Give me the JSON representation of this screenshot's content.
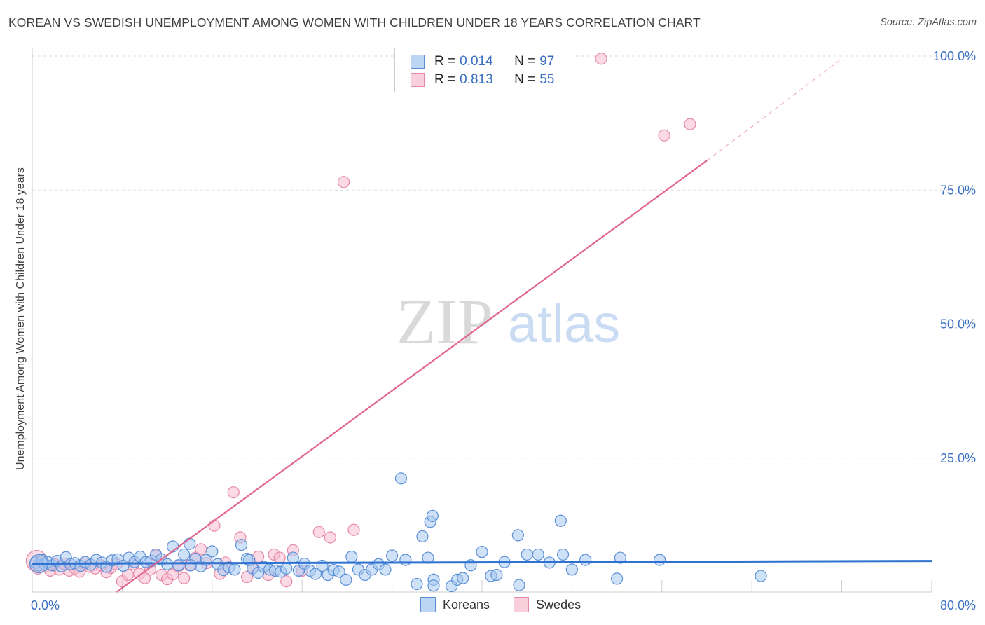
{
  "title": "KOREAN VS SWEDISH UNEMPLOYMENT AMONG WOMEN WITH CHILDREN UNDER 18 YEARS CORRELATION CHART",
  "source": "Source: ZipAtlas.com",
  "watermark": {
    "zip": "ZIP",
    "atlas": "atlas"
  },
  "colors": {
    "korean_fill": "#a8c8f0",
    "korean_stroke": "#5b8fd6",
    "korean_line": "#2f72d0",
    "swede_fill": "#f7bcd0",
    "swede_stroke": "#e58aa8",
    "swede_line": "#e0658f",
    "tick_text": "#3a6fc4",
    "grid": "#dddddd"
  },
  "legend": {
    "korean": {
      "r_label": "R =",
      "r_value": "0.014",
      "n_label": "N =",
      "n_value": "97"
    },
    "swede": {
      "r_label": "R =",
      "r_value": "0.813",
      "n_label": "N =",
      "n_value": "55"
    }
  },
  "bottom_legend": {
    "korean": "Koreans",
    "swede": "Swedes"
  },
  "chart_data": {
    "type": "scatter",
    "title": "KOREAN VS SWEDISH UNEMPLOYMENT AMONG WOMEN WITH CHILDREN UNDER 18 YEARS CORRELATION CHART",
    "xlabel": "",
    "ylabel": "Unemployment Among Women with Children Under 18 years",
    "xlim": [
      0,
      80
    ],
    "ylim": [
      0,
      102
    ],
    "x_tick_labels": [
      "0.0%",
      "80.0%"
    ],
    "y_ticks": [
      25,
      50,
      75,
      100
    ],
    "y_tick_labels": [
      "25.0%",
      "50.0%",
      "75.0%",
      "100.0%"
    ],
    "grid": true,
    "legend_placement": "top-center",
    "series": [
      {
        "name": "Koreans",
        "trend": {
          "x": [
            0,
            80
          ],
          "y": [
            5.3,
            5.8
          ]
        },
        "points": [
          [
            0.3,
            5.5
          ],
          [
            0.6,
            5.0
          ],
          [
            0.9,
            6.0
          ],
          [
            1.1,
            5.2
          ],
          [
            1.4,
            5.6
          ],
          [
            1.8,
            5.0
          ],
          [
            2.2,
            5.8
          ],
          [
            2.6,
            4.8
          ],
          [
            3.0,
            6.5
          ],
          [
            3.4,
            5.2
          ],
          [
            3.8,
            5.4
          ],
          [
            4.3,
            4.9
          ],
          [
            4.7,
            5.6
          ],
          [
            5.2,
            5.1
          ],
          [
            5.7,
            6.0
          ],
          [
            6.2,
            5.5
          ],
          [
            6.6,
            4.7
          ],
          [
            7.1,
            5.9
          ],
          [
            7.6,
            6.1
          ],
          [
            8.1,
            4.9
          ],
          [
            8.6,
            6.4
          ],
          [
            9.1,
            5.6
          ],
          [
            9.6,
            6.6
          ],
          [
            10.1,
            5.6
          ],
          [
            10.6,
            5.8
          ],
          [
            11.0,
            7.0
          ],
          [
            11.5,
            6.1
          ],
          [
            12.0,
            5.2
          ],
          [
            12.5,
            8.5
          ],
          [
            13.0,
            5.0
          ],
          [
            13.5,
            7.0
          ],
          [
            14.0,
            9.0
          ],
          [
            14.5,
            6.2
          ],
          [
            15.0,
            4.8
          ],
          [
            15.5,
            6.0
          ],
          [
            16.0,
            7.6
          ],
          [
            16.5,
            5.2
          ],
          [
            17.0,
            4.1
          ],
          [
            17.5,
            4.6
          ],
          [
            18.0,
            4.2
          ],
          [
            18.6,
            8.8
          ],
          [
            19.1,
            6.2
          ],
          [
            19.6,
            4.4
          ],
          [
            20.1,
            3.6
          ],
          [
            20.6,
            4.7
          ],
          [
            21.1,
            4.2
          ],
          [
            21.6,
            4.0
          ],
          [
            22.1,
            3.8
          ],
          [
            22.6,
            4.4
          ],
          [
            23.2,
            6.4
          ],
          [
            23.7,
            4.0
          ],
          [
            24.2,
            5.3
          ],
          [
            24.7,
            4.0
          ],
          [
            25.2,
            3.4
          ],
          [
            25.8,
            4.9
          ],
          [
            26.3,
            3.2
          ],
          [
            26.8,
            4.1
          ],
          [
            27.3,
            3.8
          ],
          [
            27.9,
            2.3
          ],
          [
            28.4,
            6.6
          ],
          [
            29.0,
            4.2
          ],
          [
            29.6,
            3.2
          ],
          [
            30.2,
            4.2
          ],
          [
            30.8,
            5.2
          ],
          [
            31.4,
            4.2
          ],
          [
            32.0,
            6.8
          ],
          [
            32.8,
            21.2
          ],
          [
            33.2,
            6.0
          ],
          [
            34.2,
            1.5
          ],
          [
            34.7,
            10.4
          ],
          [
            35.2,
            6.4
          ],
          [
            35.7,
            2.3
          ],
          [
            35.7,
            1.2
          ],
          [
            37.3,
            1.1
          ],
          [
            37.8,
            2.3
          ],
          [
            38.3,
            2.6
          ],
          [
            39.0,
            5.0
          ],
          [
            40.0,
            7.5
          ],
          [
            40.8,
            3.0
          ],
          [
            41.3,
            3.2
          ],
          [
            42.0,
            5.6
          ],
          [
            43.2,
            10.6
          ],
          [
            43.3,
            1.3
          ],
          [
            44.0,
            7.0
          ],
          [
            45.0,
            7.0
          ],
          [
            46.0,
            5.5
          ],
          [
            47.0,
            13.3
          ],
          [
            47.2,
            7.0
          ],
          [
            48.0,
            4.2
          ],
          [
            49.2,
            6.0
          ],
          [
            52.0,
            2.5
          ],
          [
            52.3,
            6.4
          ],
          [
            55.8,
            6.0
          ],
          [
            64.8,
            3.0
          ],
          [
            14.1,
            5.0
          ],
          [
            35.4,
            13.1
          ],
          [
            35.6,
            14.2
          ],
          [
            19.3,
            6.0
          ]
        ]
      },
      {
        "name": "Swedes",
        "trend": {
          "x": [
            7.5,
            60
          ],
          "y": [
            0,
            80.5
          ]
        },
        "trend_dashed": {
          "x": [
            60,
            72
          ],
          "y": [
            80.5,
            99.5
          ]
        },
        "points": [
          [
            0.2,
            5.0
          ],
          [
            0.5,
            4.4
          ],
          [
            0.8,
            5.6
          ],
          [
            1.2,
            4.8
          ],
          [
            1.6,
            4.0
          ],
          [
            2.0,
            5.2
          ],
          [
            2.4,
            4.2
          ],
          [
            2.8,
            5.3
          ],
          [
            3.3,
            4.0
          ],
          [
            3.8,
            4.4
          ],
          [
            4.2,
            3.8
          ],
          [
            4.7,
            5.3
          ],
          [
            5.1,
            4.7
          ],
          [
            5.6,
            4.4
          ],
          [
            6.1,
            5.0
          ],
          [
            6.6,
            3.7
          ],
          [
            7.0,
            4.5
          ],
          [
            7.5,
            5.2
          ],
          [
            8.0,
            2.0
          ],
          [
            8.5,
            3.2
          ],
          [
            9.0,
            5.2
          ],
          [
            9.5,
            3.4
          ],
          [
            10.0,
            2.6
          ],
          [
            10.5,
            4.2
          ],
          [
            11.0,
            6.8
          ],
          [
            11.5,
            3.2
          ],
          [
            12.0,
            2.4
          ],
          [
            12.5,
            3.3
          ],
          [
            13.0,
            4.8
          ],
          [
            13.5,
            2.6
          ],
          [
            14.0,
            5.0
          ],
          [
            14.5,
            6.4
          ],
          [
            15.0,
            8.0
          ],
          [
            15.5,
            5.4
          ],
          [
            16.2,
            12.4
          ],
          [
            16.7,
            3.4
          ],
          [
            17.2,
            5.5
          ],
          [
            17.9,
            18.6
          ],
          [
            18.5,
            10.2
          ],
          [
            19.1,
            2.8
          ],
          [
            19.6,
            4.6
          ],
          [
            20.1,
            6.6
          ],
          [
            21.0,
            3.2
          ],
          [
            21.5,
            7.0
          ],
          [
            22.0,
            6.4
          ],
          [
            22.6,
            2.0
          ],
          [
            23.2,
            7.8
          ],
          [
            24.0,
            4.0
          ],
          [
            25.5,
            11.2
          ],
          [
            26.5,
            10.2
          ],
          [
            27.7,
            76.5
          ],
          [
            28.6,
            11.6
          ],
          [
            50.6,
            99.5
          ],
          [
            56.2,
            85.2
          ],
          [
            58.5,
            87.3
          ]
        ]
      }
    ]
  }
}
